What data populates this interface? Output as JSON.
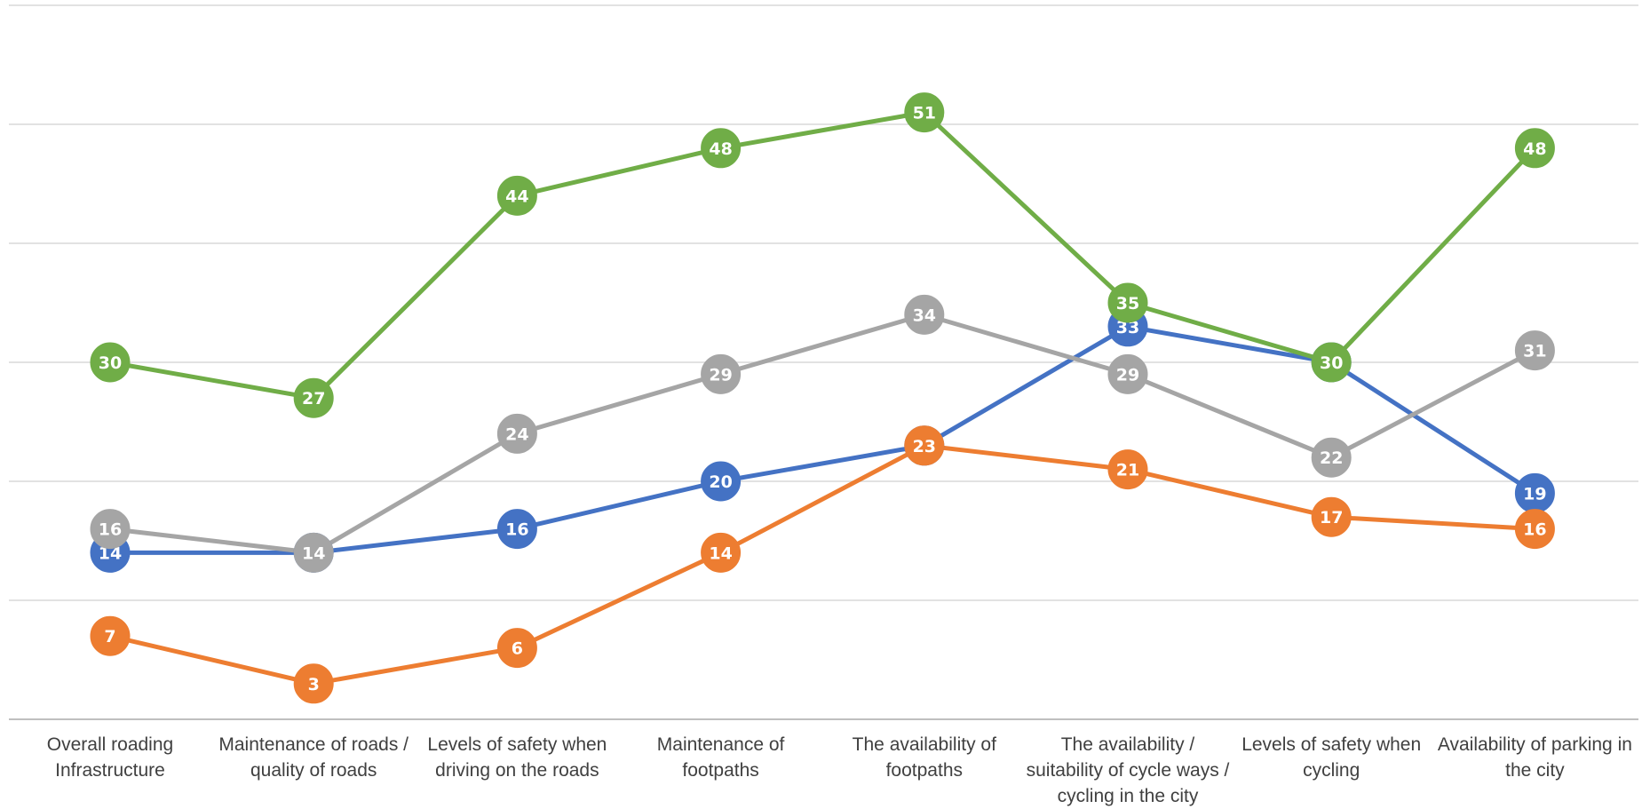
{
  "chart_data": {
    "type": "line",
    "title": "",
    "xlabel": "",
    "ylabel": "",
    "ylim": [
      0,
      60
    ],
    "grid": true,
    "y_tick_labels_shown": false,
    "legend": "none",
    "categories": [
      "Overall roading Infrastructure",
      "Maintenance of roads / quality of roads",
      "Levels of safety when driving on the roads",
      "Maintenance of footpaths",
      "The availability of footpaths",
      "The availability / suitability of cycle ways / cycling in the city",
      "Levels of safety when cycling",
      "Availability of parking in the city"
    ],
    "series": [
      {
        "color": "#4472c4",
        "values": [
          14,
          14,
          16,
          20,
          23,
          33,
          30,
          19
        ]
      },
      {
        "color": "#ed7d31",
        "values": [
          7,
          3,
          6,
          14,
          23,
          21,
          17,
          16
        ]
      },
      {
        "color": "#a5a5a5",
        "values": [
          16,
          14,
          24,
          29,
          34,
          29,
          22,
          31
        ]
      },
      {
        "color": "#70ad47",
        "values": [
          30,
          27,
          44,
          48,
          51,
          35,
          30,
          48
        ]
      }
    ]
  }
}
